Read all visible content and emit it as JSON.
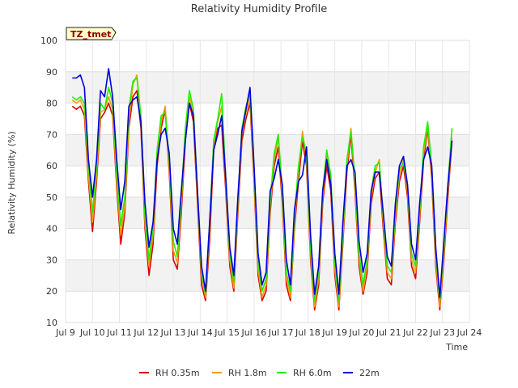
{
  "chart_data": {
    "type": "line",
    "title": "Relativity Humidity Profile",
    "xlabel": "Time",
    "ylabel": "Relativity Humidity (%)",
    "annotation": "TZ_tmet",
    "ylim": [
      10,
      100
    ],
    "yticks": [
      10,
      20,
      30,
      40,
      50,
      60,
      70,
      80,
      90,
      100
    ],
    "xlim": [
      9,
      24
    ],
    "xticks": [
      {
        "v": 9,
        "label": "Jul 9"
      },
      {
        "v": 10,
        "label": "Jul 10"
      },
      {
        "v": 11,
        "label": "Jul 11"
      },
      {
        "v": 12,
        "label": "Jul 12"
      },
      {
        "v": 13,
        "label": "Jul 13"
      },
      {
        "v": 14,
        "label": "Jul 14"
      },
      {
        "v": 15,
        "label": "Jul 15"
      },
      {
        "v": 16,
        "label": "Jul 16"
      },
      {
        "v": 17,
        "label": "Jul 17"
      },
      {
        "v": 18,
        "label": "Jul 18"
      },
      {
        "v": 19,
        "label": "Jul 19"
      },
      {
        "v": 20,
        "label": "Jul 20"
      },
      {
        "v": 21,
        "label": "Jul 21"
      },
      {
        "v": 22,
        "label": "Jul 22"
      },
      {
        "v": 23,
        "label": "Jul 23"
      },
      {
        "v": 24,
        "label": "Jul 24"
      }
    ],
    "legend_position": "bottom",
    "series": [
      {
        "name": "RH 0.35m",
        "color": "#dd0000",
        "x": [
          9.25,
          9.4,
          9.55,
          9.7,
          9.85,
          10.0,
          10.15,
          10.3,
          10.45,
          10.6,
          10.75,
          10.9,
          11.05,
          11.2,
          11.35,
          11.5,
          11.65,
          11.8,
          11.95,
          12.1,
          12.25,
          12.4,
          12.55,
          12.7,
          12.85,
          13.0,
          13.15,
          13.3,
          13.45,
          13.6,
          13.75,
          13.9,
          14.05,
          14.2,
          14.35,
          14.5,
          14.65,
          14.8,
          14.95,
          15.1,
          15.25,
          15.4,
          15.55,
          15.7,
          15.85,
          16.0,
          16.15,
          16.3,
          16.45,
          16.6,
          16.75,
          16.9,
          17.05,
          17.2,
          17.35,
          17.5,
          17.65,
          17.8,
          17.95,
          18.1,
          18.25,
          18.4,
          18.55,
          18.7,
          18.85,
          19.0,
          19.15,
          19.3,
          19.45,
          19.6,
          19.75,
          19.9,
          20.05,
          20.2,
          20.35,
          20.5,
          20.65,
          20.8,
          20.95,
          21.1,
          21.25,
          21.4,
          21.55,
          21.7,
          21.85,
          22.0,
          22.15,
          22.3,
          22.45,
          22.6,
          22.75,
          22.9,
          23.05,
          23.2,
          23.35
        ],
        "y": [
          79,
          78,
          79,
          76,
          55,
          39,
          55,
          75,
          77,
          80,
          76,
          53,
          35,
          45,
          72,
          82,
          84,
          72,
          40,
          25,
          35,
          60,
          72,
          78,
          58,
          30,
          27,
          45,
          68,
          80,
          74,
          48,
          22,
          17,
          36,
          65,
          72,
          73,
          52,
          28,
          20,
          45,
          68,
          75,
          80,
          55,
          25,
          17,
          20,
          45,
          60,
          66,
          48,
          22,
          17,
          40,
          55,
          68,
          60,
          30,
          14,
          22,
          48,
          60,
          52,
          25,
          14,
          35,
          58,
          70,
          52,
          28,
          19,
          26,
          48,
          56,
          58,
          40,
          24,
          22,
          42,
          55,
          60,
          50,
          28,
          24,
          42,
          62,
          72,
          56,
          28,
          14,
          30,
          50,
          68
        ]
      },
      {
        "name": "RH 1.8m",
        "color": "#f0a000",
        "x": [
          9.25,
          9.4,
          9.55,
          9.7,
          9.85,
          10.0,
          10.15,
          10.3,
          10.45,
          10.6,
          10.75,
          10.9,
          11.05,
          11.2,
          11.35,
          11.5,
          11.65,
          11.8,
          11.95,
          12.1,
          12.25,
          12.4,
          12.55,
          12.7,
          12.85,
          13.0,
          13.15,
          13.3,
          13.45,
          13.6,
          13.75,
          13.9,
          14.05,
          14.2,
          14.35,
          14.5,
          14.65,
          14.8,
          14.95,
          15.1,
          15.25,
          15.4,
          15.55,
          15.7,
          15.85,
          16.0,
          16.15,
          16.3,
          16.45,
          16.6,
          16.75,
          16.9,
          17.05,
          17.2,
          17.35,
          17.5,
          17.65,
          17.8,
          17.95,
          18.1,
          18.25,
          18.4,
          18.55,
          18.7,
          18.85,
          19.0,
          19.15,
          19.3,
          19.45,
          19.6,
          19.75,
          19.9,
          20.05,
          20.2,
          20.35,
          20.5,
          20.65,
          20.8,
          20.95,
          21.1,
          21.25,
          21.4,
          21.55,
          21.7,
          21.85,
          22.0,
          22.15,
          22.3,
          22.45,
          22.6,
          22.75,
          22.9,
          23.05,
          23.2,
          23.35
        ],
        "y": [
          81,
          80,
          81,
          78,
          57,
          42,
          57,
          77,
          78,
          82,
          78,
          55,
          38,
          47,
          74,
          86,
          89,
          74,
          42,
          28,
          38,
          63,
          74,
          79,
          60,
          33,
          29,
          48,
          70,
          82,
          76,
          50,
          25,
          18,
          40,
          67,
          74,
          79,
          54,
          30,
          21,
          47,
          70,
          77,
          82,
          57,
          27,
          18,
          22,
          47,
          62,
          69,
          50,
          24,
          18,
          42,
          58,
          71,
          62,
          32,
          15,
          24,
          50,
          63,
          55,
          27,
          15,
          37,
          60,
          72,
          54,
          30,
          20,
          28,
          50,
          58,
          62,
          42,
          26,
          24,
          44,
          57,
          62,
          52,
          30,
          26,
          44,
          64,
          73,
          58,
          30,
          15,
          32,
          52,
          69
        ]
      },
      {
        "name": "RH 6.0m",
        "color": "#22ee00",
        "x": [
          9.25,
          9.4,
          9.55,
          9.7,
          9.85,
          10.0,
          10.15,
          10.3,
          10.45,
          10.6,
          10.75,
          10.9,
          11.05,
          11.2,
          11.35,
          11.5,
          11.65,
          11.8,
          11.95,
          12.1,
          12.25,
          12.4,
          12.55,
          12.7,
          12.85,
          13.0,
          13.15,
          13.3,
          13.45,
          13.6,
          13.75,
          13.9,
          14.05,
          14.2,
          14.35,
          14.5,
          14.65,
          14.8,
          14.95,
          15.1,
          15.25,
          15.4,
          15.55,
          15.7,
          15.85,
          16.0,
          16.15,
          16.3,
          16.45,
          16.6,
          16.75,
          16.9,
          17.05,
          17.2,
          17.35,
          17.5,
          17.65,
          17.8,
          17.95,
          18.1,
          18.25,
          18.4,
          18.55,
          18.7,
          18.85,
          19.0,
          19.15,
          19.3,
          19.45,
          19.6,
          19.75,
          19.9,
          20.05,
          20.2,
          20.35,
          20.5,
          20.65,
          20.8,
          20.95,
          21.1,
          21.25,
          21.4,
          21.55,
          21.7,
          21.85,
          22.0,
          22.15,
          22.3,
          22.45,
          22.6,
          22.75,
          22.9,
          23.05,
          23.2,
          23.35
        ],
        "y": [
          82,
          81,
          82,
          80,
          60,
          45,
          60,
          80,
          78,
          85,
          80,
          58,
          41,
          50,
          78,
          87,
          88,
          76,
          44,
          30,
          40,
          65,
          76,
          77,
          62,
          36,
          31,
          50,
          72,
          84,
          78,
          52,
          26,
          19,
          42,
          68,
          75,
          83,
          56,
          32,
          23,
          49,
          72,
          79,
          83,
          59,
          29,
          20,
          24,
          49,
          64,
          70,
          52,
          26,
          20,
          44,
          60,
          69,
          64,
          34,
          17,
          26,
          52,
          65,
          57,
          29,
          17,
          39,
          62,
          71,
          56,
          32,
          22,
          30,
          52,
          60,
          61,
          44,
          28,
          26,
          46,
          59,
          61,
          54,
          32,
          28,
          46,
          66,
          74,
          60,
          32,
          17,
          34,
          54,
          72
        ]
      },
      {
        "name": "22m",
        "color": "#0000dd",
        "x": [
          9.25,
          9.4,
          9.55,
          9.7,
          9.85,
          10.0,
          10.15,
          10.3,
          10.45,
          10.6,
          10.75,
          10.9,
          11.05,
          11.2,
          11.35,
          11.5,
          11.65,
          11.8,
          11.95,
          12.1,
          12.25,
          12.4,
          12.55,
          12.7,
          12.85,
          13.0,
          13.15,
          13.3,
          13.45,
          13.6,
          13.75,
          13.9,
          14.05,
          14.2,
          14.35,
          14.5,
          14.65,
          14.8,
          14.95,
          15.1,
          15.25,
          15.4,
          15.55,
          15.7,
          15.85,
          16.0,
          16.15,
          16.3,
          16.45,
          16.6,
          16.75,
          16.9,
          17.05,
          17.2,
          17.35,
          17.5,
          17.65,
          17.8,
          17.95,
          18.1,
          18.25,
          18.4,
          18.55,
          18.7,
          18.85,
          19.0,
          19.15,
          19.3,
          19.45,
          19.6,
          19.75,
          19.9,
          20.05,
          20.2,
          20.35,
          20.5,
          20.65,
          20.8,
          20.95,
          21.1,
          21.25,
          21.4,
          21.55,
          21.7,
          21.85,
          22.0,
          22.15,
          22.3,
          22.45,
          22.6,
          22.75,
          22.9,
          23.05,
          23.2,
          23.35
        ],
        "y": [
          88,
          88,
          89,
          85,
          62,
          50,
          62,
          84,
          82,
          91,
          82,
          62,
          46,
          55,
          79,
          81,
          82,
          74,
          48,
          34,
          42,
          62,
          70,
          72,
          64,
          40,
          35,
          52,
          68,
          80,
          76,
          52,
          28,
          20,
          42,
          65,
          70,
          76,
          56,
          34,
          25,
          50,
          71,
          78,
          85,
          60,
          32,
          22,
          26,
          52,
          56,
          62,
          54,
          30,
          22,
          46,
          55,
          57,
          66,
          38,
          19,
          28,
          52,
          62,
          54,
          32,
          19,
          42,
          60,
          62,
          58,
          36,
          26,
          32,
          52,
          58,
          58,
          45,
          31,
          28,
          48,
          60,
          63,
          54,
          35,
          30,
          48,
          62,
          66,
          60,
          34,
          18,
          36,
          54,
          68
        ]
      }
    ]
  }
}
